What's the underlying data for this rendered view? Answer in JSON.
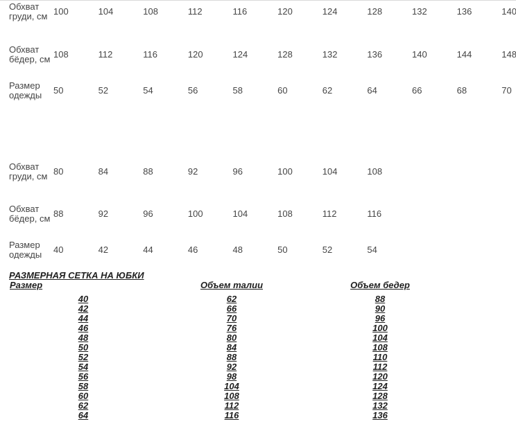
{
  "colors": {
    "page-bg": "#ffffff",
    "table-text": "#454545",
    "skirt-text": "#1f1f1f",
    "top-line": "#d9d9d9"
  },
  "upper_size_table": {
    "rows": [
      {
        "label": "Обхват груди, см",
        "values": [
          "100",
          "104",
          "108",
          "112",
          "116",
          "120",
          "124",
          "128",
          "132",
          "136",
          "140"
        ]
      },
      {
        "label": "Обхват бёдер, см",
        "values": [
          "108",
          "112",
          "116",
          "120",
          "124",
          "128",
          "132",
          "136",
          "140",
          "144",
          "148"
        ]
      },
      {
        "label": "Размер одежды",
        "values": [
          "50",
          "52",
          "54",
          "56",
          "58",
          "60",
          "62",
          "64",
          "66",
          "68",
          "70"
        ]
      }
    ]
  },
  "lower_size_table": {
    "rows": [
      {
        "label": "Обхват груди, см",
        "values": [
          "80",
          "84",
          "88",
          "92",
          "96",
          "100",
          "104",
          "108"
        ]
      },
      {
        "label": "Обхват бёдер, см",
        "values": [
          "88",
          "92",
          "96",
          "100",
          "104",
          "108",
          "112",
          "116"
        ]
      },
      {
        "label": "Размер одежды",
        "values": [
          "40",
          "42",
          "44",
          "46",
          "48",
          "50",
          "52",
          "54"
        ]
      }
    ]
  },
  "skirt_table": {
    "title": "РАЗМЕРНАЯ СЕТКА НА ЮБКИ",
    "headers": [
      "Размер",
      "Объем талии",
      "Объем бедер"
    ],
    "rows": [
      [
        "40",
        "62",
        "88"
      ],
      [
        "42",
        "66",
        "90"
      ],
      [
        "44",
        "70",
        "96"
      ],
      [
        "46",
        "76",
        "100"
      ],
      [
        "48",
        "80",
        "104"
      ],
      [
        "50",
        "84",
        "108"
      ],
      [
        "52",
        "88",
        "110"
      ],
      [
        "54",
        "92",
        "112"
      ],
      [
        "56",
        "98",
        "120"
      ],
      [
        "58",
        "104",
        "124"
      ],
      [
        "60",
        "108",
        "128"
      ],
      [
        "62",
        "112",
        "132"
      ],
      [
        "64",
        "116",
        "136"
      ]
    ]
  }
}
